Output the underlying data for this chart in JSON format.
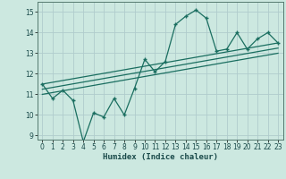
{
  "xlabel": "Humidex (Indice chaleur)",
  "bg_color": "#cce8e0",
  "grid_color": "#b0cccc",
  "line_color": "#1a6e60",
  "x_data": [
    0,
    1,
    2,
    3,
    4,
    5,
    6,
    7,
    8,
    9,
    10,
    11,
    12,
    13,
    14,
    15,
    16,
    17,
    18,
    19,
    20,
    21,
    22,
    23
  ],
  "y_main": [
    11.5,
    10.8,
    11.2,
    10.7,
    8.7,
    10.1,
    9.9,
    10.8,
    10.0,
    11.3,
    12.7,
    12.1,
    12.6,
    14.4,
    14.8,
    15.1,
    14.7,
    13.1,
    13.2,
    14.0,
    13.2,
    13.7,
    14.0,
    13.5
  ],
  "reg_lines": [
    [
      [
        0,
        23
      ],
      [
        11.5,
        13.5
      ]
    ],
    [
      [
        0,
        23
      ],
      [
        11.25,
        13.25
      ]
    ],
    [
      [
        0,
        23
      ],
      [
        11.0,
        13.0
      ]
    ]
  ],
  "ylim": [
    8.8,
    15.5
  ],
  "xlim": [
    -0.5,
    23.5
  ],
  "yticks": [
    9,
    10,
    11,
    12,
    13,
    14,
    15
  ],
  "xticks": [
    0,
    1,
    2,
    3,
    4,
    5,
    6,
    7,
    8,
    9,
    10,
    11,
    12,
    13,
    14,
    15,
    16,
    17,
    18,
    19,
    20,
    21,
    22,
    23
  ],
  "xlabel_fontsize": 6.5,
  "tick_fontsize": 5.5
}
